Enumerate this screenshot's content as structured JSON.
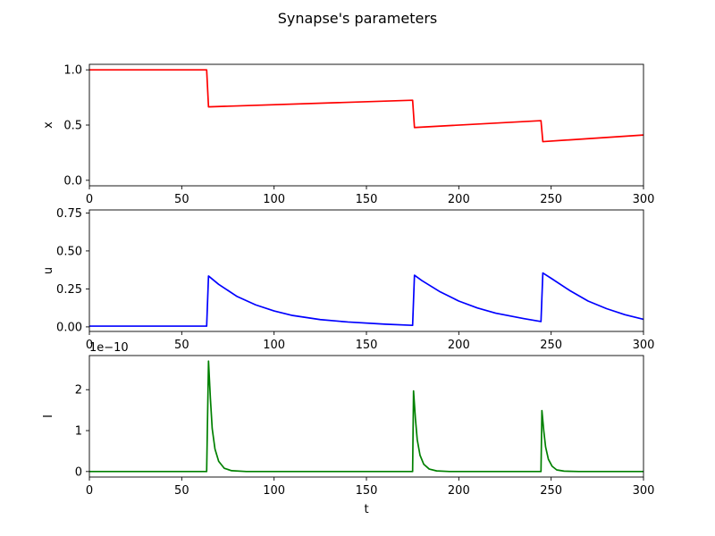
{
  "figure": {
    "title": "Synapse's parameters"
  },
  "chart_data": [
    {
      "type": "line",
      "ylabel": "x",
      "xlabel": "",
      "xlim": [
        0,
        300
      ],
      "ylim": [
        -0.05,
        1.05
      ],
      "x_ticks": [
        "0",
        "50",
        "100",
        "150",
        "200",
        "250",
        "300"
      ],
      "x_tick_values": [
        0,
        50,
        100,
        150,
        200,
        250,
        300
      ],
      "y_ticks": [
        "0.0",
        "0.5",
        "1.0"
      ],
      "y_tick_values": [
        0,
        0.5,
        1.0
      ],
      "offset_text": "",
      "series": [
        {
          "color": "#ff0000",
          "x": [
            0,
            63.5,
            64.5,
            175,
            176,
            244.5,
            245.5,
            300
          ],
          "y": [
            1.0,
            1.0,
            0.665,
            0.725,
            0.478,
            0.54,
            0.35,
            0.41
          ]
        }
      ]
    },
    {
      "type": "line",
      "ylabel": "u",
      "xlabel": "",
      "xlim": [
        0,
        300
      ],
      "ylim": [
        -0.03,
        0.77
      ],
      "x_ticks": [
        "0",
        "50",
        "100",
        "150",
        "200",
        "250",
        "300"
      ],
      "x_tick_values": [
        0,
        50,
        100,
        150,
        200,
        250,
        300
      ],
      "y_ticks": [
        "0.00",
        "0.25",
        "0.50",
        "0.75"
      ],
      "y_tick_values": [
        0,
        0.25,
        0.5,
        0.75
      ],
      "offset_text": "",
      "series": [
        {
          "color": "#0000ff",
          "x": [
            0,
            63.5,
            64.5,
            70,
            80,
            90,
            100,
            110,
            125,
            140,
            160,
            175,
            176,
            180,
            190,
            200,
            210,
            220,
            235,
            244.5,
            245.5,
            250,
            260,
            270,
            280,
            290,
            300
          ],
          "y": [
            0.005,
            0.005,
            0.335,
            0.28,
            0.2,
            0.145,
            0.105,
            0.075,
            0.048,
            0.032,
            0.018,
            0.01,
            0.34,
            0.305,
            0.23,
            0.17,
            0.125,
            0.09,
            0.055,
            0.035,
            0.355,
            0.32,
            0.24,
            0.17,
            0.12,
            0.08,
            0.05
          ]
        }
      ]
    },
    {
      "type": "line",
      "ylabel": "I",
      "xlabel": "t",
      "xlim": [
        0,
        300
      ],
      "ylim": [
        -1.35e-11,
        2.835e-10
      ],
      "x_ticks": [
        "0",
        "50",
        "100",
        "150",
        "200",
        "250",
        "300"
      ],
      "x_tick_values": [
        0,
        50,
        100,
        150,
        200,
        250,
        300
      ],
      "y_ticks": [
        "0",
        "1",
        "2"
      ],
      "y_tick_values": [
        0,
        1e-10,
        2e-10
      ],
      "offset_text": "1e−10",
      "series": [
        {
          "color": "#008000",
          "x": [
            0,
            63.5,
            64.5,
            65.5,
            66.5,
            68,
            70,
            73,
            77,
            85,
            175,
            175.5,
            176.5,
            177.5,
            179,
            181,
            184,
            188,
            195,
            244.5,
            245,
            246,
            247,
            248.5,
            250.5,
            253,
            257,
            265,
            300
          ],
          "y": [
            0,
            0,
            2.7e-10,
            1.8e-10,
            1.05e-10,
            5.5e-11,
            2.5e-11,
            8e-12,
            2e-12,
            0,
            0,
            1.97e-10,
            1.3e-10,
            7.8e-11,
            4e-11,
            1.8e-11,
            6e-12,
            1.5e-12,
            0,
            0,
            1.49e-10,
            1e-10,
            6e-11,
            3e-11,
            1.3e-11,
            4e-12,
            1e-12,
            0,
            0
          ]
        }
      ]
    }
  ]
}
